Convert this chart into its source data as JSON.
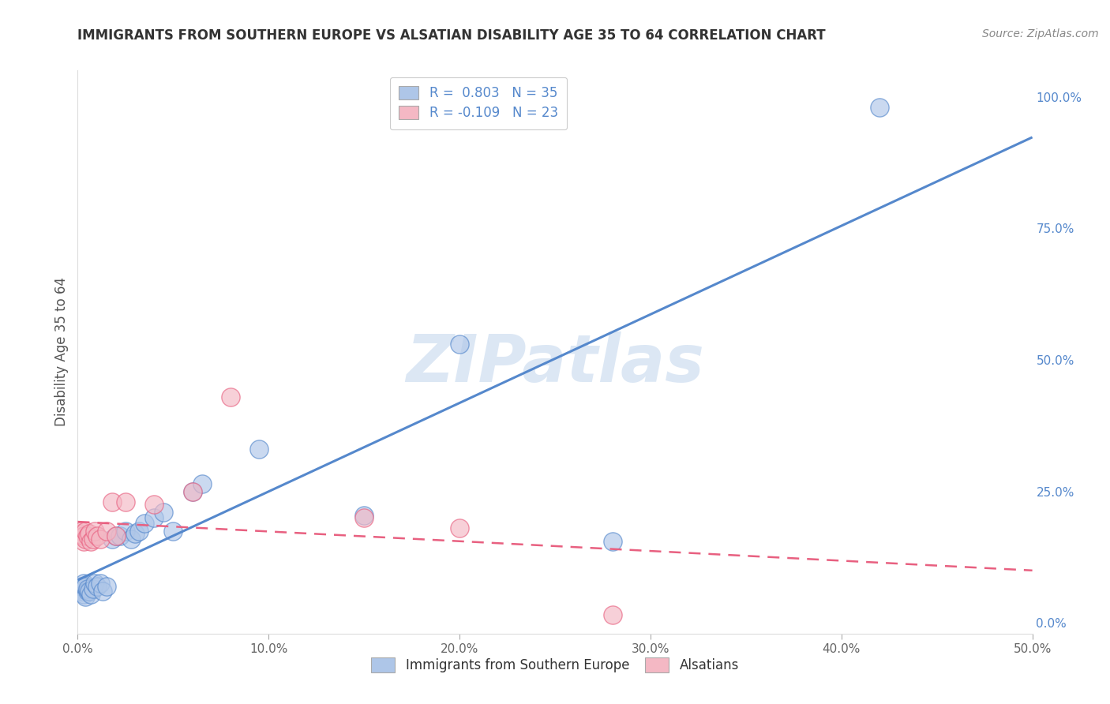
{
  "title": "IMMIGRANTS FROM SOUTHERN EUROPE VS ALSATIAN DISABILITY AGE 35 TO 64 CORRELATION CHART",
  "source": "Source: ZipAtlas.com",
  "ylabel": "Disability Age 35 to 64",
  "xlim": [
    0.0,
    0.5
  ],
  "ylim": [
    -0.02,
    1.05
  ],
  "grid_color": "#cccccc",
  "background_color": "#ffffff",
  "blue_R": 0.803,
  "blue_N": 35,
  "pink_R": -0.109,
  "pink_N": 23,
  "blue_color": "#aec6e8",
  "pink_color": "#f4b8c4",
  "blue_line_color": "#5588cc",
  "pink_line_color": "#e86080",
  "watermark": "ZIPatlas",
  "watermark_color": "#c5d8ee",
  "blue_scatter_x": [
    0.001,
    0.002,
    0.002,
    0.003,
    0.003,
    0.004,
    0.004,
    0.005,
    0.005,
    0.006,
    0.007,
    0.008,
    0.009,
    0.01,
    0.012,
    0.013,
    0.015,
    0.018,
    0.02,
    0.022,
    0.025,
    0.028,
    0.03,
    0.032,
    0.035,
    0.04,
    0.045,
    0.05,
    0.06,
    0.065,
    0.095,
    0.15,
    0.2,
    0.28,
    0.42
  ],
  "blue_scatter_y": [
    0.065,
    0.06,
    0.07,
    0.055,
    0.075,
    0.05,
    0.07,
    0.06,
    0.065,
    0.06,
    0.055,
    0.065,
    0.075,
    0.07,
    0.075,
    0.06,
    0.07,
    0.16,
    0.165,
    0.165,
    0.175,
    0.16,
    0.17,
    0.175,
    0.19,
    0.2,
    0.21,
    0.175,
    0.25,
    0.265,
    0.33,
    0.205,
    0.53,
    0.155,
    0.98
  ],
  "pink_scatter_x": [
    0.001,
    0.002,
    0.003,
    0.003,
    0.004,
    0.004,
    0.005,
    0.006,
    0.007,
    0.008,
    0.009,
    0.01,
    0.012,
    0.015,
    0.018,
    0.02,
    0.025,
    0.04,
    0.06,
    0.08,
    0.15,
    0.2,
    0.28
  ],
  "pink_scatter_y": [
    0.17,
    0.175,
    0.155,
    0.165,
    0.16,
    0.175,
    0.165,
    0.17,
    0.155,
    0.16,
    0.175,
    0.165,
    0.16,
    0.175,
    0.23,
    0.165,
    0.23,
    0.225,
    0.25,
    0.43,
    0.2,
    0.18,
    0.015
  ],
  "ytick_positions": [
    0.0,
    0.25,
    0.5,
    0.75,
    1.0
  ],
  "ytick_labels": [
    "0.0%",
    "25.0%",
    "50.0%",
    "75.0%",
    "100.0%"
  ],
  "xtick_positions": [
    0.0,
    0.1,
    0.2,
    0.3,
    0.4,
    0.5
  ],
  "xtick_labels": [
    "0.0%",
    "10.0%",
    "20.0%",
    "30.0%",
    "40.0%",
    "50.0%"
  ]
}
